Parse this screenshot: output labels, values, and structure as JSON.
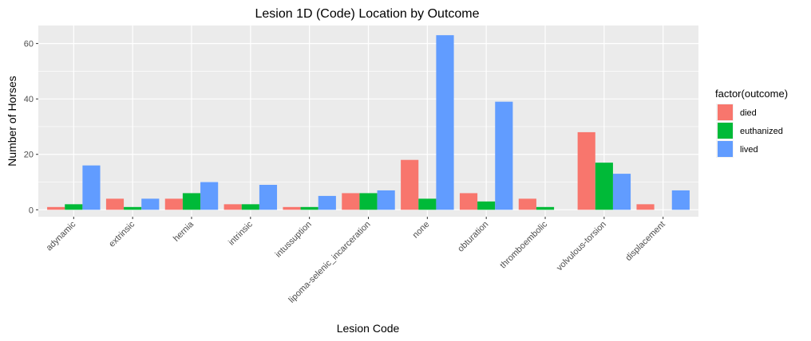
{
  "chart_data": {
    "type": "bar",
    "title": "Lesion 1D (Code) Location by Outcome",
    "xlabel": "Lesion Code",
    "ylabel": "Number of Horses",
    "ylim": [
      -2.5,
      66.5
    ],
    "yticks": [
      0,
      20,
      40,
      60
    ],
    "grid": true,
    "legend_position": "right",
    "legend_title": "factor(outcome)",
    "categories": [
      "adynamic",
      "extrinsic",
      "hernia",
      "intrinsic",
      "intussuption",
      "lipoma-selenic_incarceration",
      "none",
      "obturation",
      "thromboembolic",
      "volvulous-torsion",
      "displacement"
    ],
    "series": [
      {
        "name": "died",
        "color": "#F8766D",
        "values": [
          1,
          4,
          4,
          2,
          1,
          6,
          18,
          6,
          4,
          28,
          2
        ]
      },
      {
        "name": "euthanized",
        "color": "#00BA38",
        "values": [
          2,
          1,
          6,
          2,
          1,
          6,
          4,
          3,
          1,
          17,
          0
        ]
      },
      {
        "name": "lived",
        "color": "#619CFF",
        "values": [
          16,
          4,
          10,
          9,
          5,
          7,
          63,
          39,
          0,
          13,
          7
        ]
      }
    ]
  }
}
